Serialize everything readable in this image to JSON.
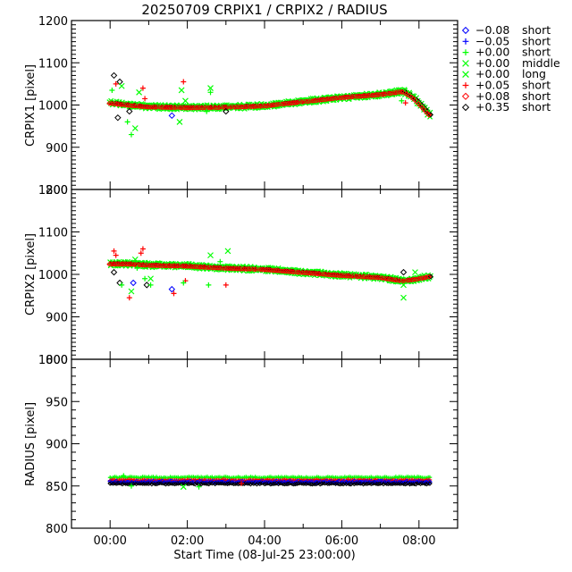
{
  "chart_data": {
    "type": "scatter",
    "title": "20250709 CRPIX1 / CRPIX2 / RADIUS",
    "xlabel": "Start Time (08-Jul-25 23:00:00)",
    "xlim": [
      -1.0,
      9.0
    ],
    "x_ticks": [
      {
        "value": 0,
        "label": "00:00"
      },
      {
        "value": 2,
        "label": "02:00"
      },
      {
        "value": 4,
        "label": "04:00"
      },
      {
        "value": 6,
        "label": "06:00"
      },
      {
        "value": 8,
        "label": "08:00"
      }
    ],
    "x_minor_step": 1,
    "grid": false,
    "legend_position": "right",
    "legend": [
      {
        "symbol": "diamond",
        "offset": "−0.08",
        "label": "short",
        "color": "#0000ff"
      },
      {
        "symbol": "plus",
        "offset": "−0.05",
        "label": "short",
        "color": "#0000ff"
      },
      {
        "symbol": "plus",
        "offset": "+0.00",
        "label": "short",
        "color": "#00ff00"
      },
      {
        "symbol": "cross",
        "offset": "+0.00",
        "label": "middle",
        "color": "#00ff00"
      },
      {
        "symbol": "cross",
        "offset": "+0.00",
        "label": "long",
        "color": "#00ff00"
      },
      {
        "symbol": "plus",
        "offset": "+0.05",
        "label": "short",
        "color": "#ff0000"
      },
      {
        "symbol": "diamond",
        "offset": "+0.08",
        "label": "short",
        "color": "#ff0000"
      },
      {
        "symbol": "diamond",
        "offset": "+0.35",
        "label": "short",
        "color": "#000000"
      }
    ],
    "panels": [
      {
        "ylabel": "CRPIX1 [pixel]",
        "ylim": [
          800,
          1200
        ],
        "y_ticks": [
          {
            "value": 800,
            "label": "800"
          },
          {
            "value": 900,
            "label": "900"
          },
          {
            "value": 1000,
            "label": "1000"
          },
          {
            "value": 1100,
            "label": "1100"
          },
          {
            "value": 1200,
            "label": "1200"
          }
        ],
        "y_minor_step": 10,
        "trend": [
          [
            0.0,
            1005
          ],
          [
            0.5,
            1000
          ],
          [
            1.0,
            996
          ],
          [
            2.0,
            994
          ],
          [
            3.0,
            995
          ],
          [
            4.0,
            998
          ],
          [
            5.0,
            1008
          ],
          [
            6.0,
            1018
          ],
          [
            7.0,
            1025
          ],
          [
            7.6,
            1032
          ],
          [
            7.8,
            1022
          ],
          [
            8.0,
            1005
          ],
          [
            8.3,
            975
          ]
        ],
        "outliers": [
          [
            0.1,
            1070,
            "black"
          ],
          [
            0.25,
            1055,
            "black"
          ],
          [
            0.2,
            970,
            "black"
          ],
          [
            0.15,
            1050,
            "red"
          ],
          [
            0.05,
            1035,
            "green"
          ],
          [
            0.3,
            1045,
            "green"
          ],
          [
            0.45,
            960,
            "green"
          ],
          [
            0.55,
            930,
            "green"
          ],
          [
            0.65,
            945,
            "green"
          ],
          [
            0.75,
            1030,
            "green"
          ],
          [
            0.85,
            1040,
            "red"
          ],
          [
            0.5,
            985,
            "black"
          ],
          [
            0.9,
            1015,
            "red"
          ],
          [
            1.9,
            1055,
            "red"
          ],
          [
            1.85,
            1035,
            "green"
          ],
          [
            1.95,
            1010,
            "green"
          ],
          [
            1.6,
            975,
            "blue"
          ],
          [
            1.8,
            960,
            "green"
          ],
          [
            2.6,
            1040,
            "green"
          ],
          [
            2.6,
            1030,
            "green"
          ],
          [
            2.5,
            985,
            "green"
          ],
          [
            3.0,
            985,
            "black"
          ],
          [
            7.55,
            1010,
            "green"
          ],
          [
            7.65,
            1005,
            "red"
          ]
        ]
      },
      {
        "ylabel": "CRPIX2 [pixel]",
        "ylim": [
          800,
          1200
        ],
        "y_ticks": [
          {
            "value": 800,
            "label": "800"
          },
          {
            "value": 900,
            "label": "900"
          },
          {
            "value": 1000,
            "label": "1000"
          },
          {
            "value": 1100,
            "label": "1100"
          },
          {
            "value": 1200,
            "label": "1200"
          }
        ],
        "y_minor_step": 10,
        "trend": [
          [
            0.0,
            1025
          ],
          [
            0.5,
            1025
          ],
          [
            1.0,
            1022
          ],
          [
            2.0,
            1020
          ],
          [
            3.0,
            1015
          ],
          [
            4.0,
            1012
          ],
          [
            5.0,
            1005
          ],
          [
            6.0,
            998
          ],
          [
            7.0,
            993
          ],
          [
            7.6,
            985
          ],
          [
            8.0,
            990
          ],
          [
            8.3,
            995
          ]
        ],
        "outliers": [
          [
            0.1,
            1055,
            "red"
          ],
          [
            0.15,
            1045,
            "red"
          ],
          [
            0.1,
            1005,
            "black"
          ],
          [
            0.25,
            980,
            "black"
          ],
          [
            0.3,
            975,
            "green"
          ],
          [
            0.6,
            980,
            "blue"
          ],
          [
            0.5,
            945,
            "red"
          ],
          [
            0.55,
            960,
            "green"
          ],
          [
            0.65,
            1035,
            "green"
          ],
          [
            0.8,
            1050,
            "red"
          ],
          [
            0.85,
            1060,
            "red"
          ],
          [
            0.9,
            990,
            "green"
          ],
          [
            0.95,
            975,
            "black"
          ],
          [
            0.7,
            1015,
            "green"
          ],
          [
            1.05,
            990,
            "green"
          ],
          [
            1.05,
            975,
            "green"
          ],
          [
            1.65,
            955,
            "red"
          ],
          [
            1.6,
            965,
            "blue"
          ],
          [
            1.95,
            985,
            "red"
          ],
          [
            1.9,
            980,
            "green"
          ],
          [
            2.6,
            1045,
            "green"
          ],
          [
            2.85,
            1030,
            "green"
          ],
          [
            2.55,
            975,
            "green"
          ],
          [
            3.0,
            975,
            "red"
          ],
          [
            3.05,
            1055,
            "green"
          ],
          [
            7.6,
            1005,
            "black"
          ],
          [
            7.6,
            975,
            "green"
          ],
          [
            7.6,
            945,
            "green"
          ],
          [
            7.9,
            1005,
            "green"
          ]
        ]
      },
      {
        "ylabel": "RADIUS [pixel]",
        "ylim": [
          800,
          1000
        ],
        "y_ticks": [
          {
            "value": 800,
            "label": "800"
          },
          {
            "value": 850,
            "label": "850"
          },
          {
            "value": 900,
            "label": "900"
          },
          {
            "value": 950,
            "label": "950"
          },
          {
            "value": 1000,
            "label": "1000"
          }
        ],
        "y_minor_step": 10,
        "bands": [
          {
            "color": "green",
            "value": 860
          },
          {
            "color": "red",
            "value": 857
          },
          {
            "color": "blue",
            "value": 855
          },
          {
            "color": "black",
            "value": 853
          }
        ],
        "x_range": [
          0.0,
          8.3
        ],
        "outliers": [
          [
            0.55,
            850,
            "green"
          ],
          [
            0.35,
            862,
            "green"
          ],
          [
            1.9,
            849,
            "green"
          ],
          [
            2.3,
            849,
            "green"
          ],
          [
            3.4,
            853,
            "red"
          ]
        ]
      }
    ]
  }
}
